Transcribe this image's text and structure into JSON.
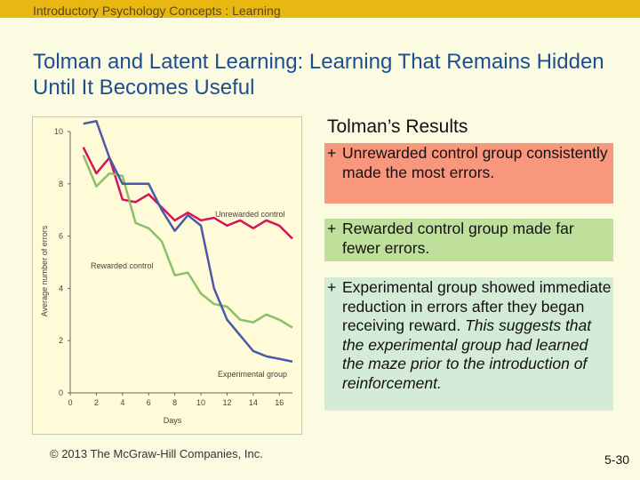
{
  "header": {
    "course": "Introductory Psychology Concepts : Learning"
  },
  "slide": {
    "title": "Tolman and Latent Learning: Learning That Remains Hidden Until It Becomes Useful",
    "results_heading": "Tolman’s Results",
    "bullet_marker": "+",
    "bullets": [
      {
        "plain": "Unrewarded control group consistently made the most errors.",
        "italic": ""
      },
      {
        "plain": "Rewarded control group made far fewer errors.",
        "italic": ""
      },
      {
        "plain": "Experimental group showed immediate reduction in errors after they began receiving reward.",
        "italic": " This suggests that the experimental group had learned the maze prior to the introduction of reinforcement."
      }
    ],
    "copyright": "© 2013 The McGraw-Hill Companies, Inc.",
    "page_number": "5-30"
  },
  "chart_data": {
    "type": "line",
    "xlabel": "Days",
    "ylabel": "Average number of errors",
    "xlim": [
      0,
      17
    ],
    "ylim": [
      0,
      10
    ],
    "xticks": [
      0,
      2,
      4,
      6,
      8,
      10,
      12,
      14,
      16
    ],
    "yticks": [
      0,
      2,
      4,
      6,
      8,
      10
    ],
    "grid": false,
    "legend": "inline labels",
    "series": [
      {
        "name": "Unrewarded control",
        "color": "#d4145a",
        "x": [
          1,
          2,
          3,
          4,
          5,
          6,
          7,
          8,
          9,
          10,
          11,
          12,
          13,
          14,
          15,
          16,
          17
        ],
        "y": [
          9.4,
          8.4,
          9.0,
          7.4,
          7.3,
          7.6,
          7.1,
          6.6,
          6.9,
          6.6,
          6.7,
          6.4,
          6.6,
          6.3,
          6.6,
          6.4,
          5.9
        ]
      },
      {
        "name": "Rewarded control",
        "color": "#8bbf6a",
        "x": [
          1,
          2,
          3,
          4,
          5,
          6,
          7,
          8,
          9,
          10,
          11,
          12,
          13,
          14,
          15,
          16,
          17
        ],
        "y": [
          9.1,
          7.9,
          8.4,
          8.3,
          6.5,
          6.3,
          5.8,
          4.5,
          4.6,
          3.8,
          3.4,
          3.3,
          2.8,
          2.7,
          3.0,
          2.8,
          2.5
        ]
      },
      {
        "name": "Experimental group",
        "color": "#4a5aa8",
        "x": [
          1,
          2,
          3,
          4,
          5,
          6,
          7,
          8,
          9,
          10,
          11,
          12,
          13,
          14,
          15,
          16,
          17
        ],
        "y": [
          10.3,
          10.4,
          9.0,
          8.0,
          8.0,
          8.0,
          7.0,
          6.2,
          6.8,
          6.4,
          4.0,
          2.8,
          2.2,
          1.6,
          1.4,
          1.3,
          1.2
        ]
      }
    ]
  }
}
